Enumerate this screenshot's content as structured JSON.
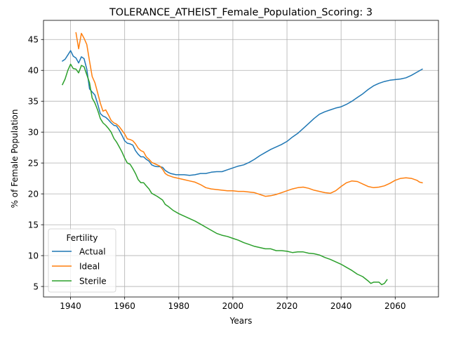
{
  "chart_data": {
    "type": "line",
    "title": "TOLERANCE_ATHEIST_Female_Population_Scoring: 3",
    "xlabel": "Years",
    "ylabel": "% of Female Population",
    "xlim": [
      1930,
      2076
    ],
    "ylim": [
      3.3,
      48.1
    ],
    "xticks": [
      1940,
      1960,
      1980,
      2000,
      2020,
      2040,
      2060
    ],
    "yticks": [
      5,
      10,
      15,
      20,
      25,
      30,
      35,
      40,
      45
    ],
    "grid": true,
    "legend": {
      "title": "Fertility",
      "placement": "lower-left"
    },
    "series": [
      {
        "name": "Actual",
        "color": "#1f77b4",
        "points": [
          [
            1937,
            41.5
          ],
          [
            1938,
            41.8
          ],
          [
            1939,
            42.5
          ],
          [
            1940,
            43.2
          ],
          [
            1941,
            42.3
          ],
          [
            1942,
            42.0
          ],
          [
            1943,
            41.2
          ],
          [
            1944,
            42.2
          ],
          [
            1945,
            41.9
          ],
          [
            1946,
            40.2
          ],
          [
            1947,
            37.0
          ],
          [
            1948,
            36.5
          ],
          [
            1949,
            36.0
          ],
          [
            1950,
            34.6
          ],
          [
            1951,
            33.0
          ],
          [
            1952,
            32.6
          ],
          [
            1953,
            32.4
          ],
          [
            1954,
            32.0
          ],
          [
            1955,
            31.5
          ],
          [
            1956,
            31.1
          ],
          [
            1957,
            31.0
          ],
          [
            1958,
            30.3
          ],
          [
            1959,
            29.5
          ],
          [
            1960,
            28.6
          ],
          [
            1961,
            28.2
          ],
          [
            1962,
            28.1
          ],
          [
            1963,
            27.9
          ],
          [
            1964,
            27.0
          ],
          [
            1965,
            26.4
          ],
          [
            1966,
            26.0
          ],
          [
            1967,
            26.0
          ],
          [
            1968,
            25.6
          ],
          [
            1969,
            25.3
          ],
          [
            1970,
            24.7
          ],
          [
            1971,
            24.5
          ],
          [
            1972,
            24.4
          ],
          [
            1973,
            24.4
          ],
          [
            1974,
            24.3
          ],
          [
            1975,
            23.8
          ],
          [
            1976,
            23.5
          ],
          [
            1977,
            23.3
          ],
          [
            1978,
            23.2
          ],
          [
            1979,
            23.1
          ],
          [
            1980,
            23.1
          ],
          [
            1982,
            23.1
          ],
          [
            1984,
            23.0
          ],
          [
            1986,
            23.1
          ],
          [
            1988,
            23.3
          ],
          [
            1990,
            23.3
          ],
          [
            1992,
            23.5
          ],
          [
            1994,
            23.6
          ],
          [
            1996,
            23.6
          ],
          [
            1998,
            23.9
          ],
          [
            2000,
            24.2
          ],
          [
            2002,
            24.5
          ],
          [
            2004,
            24.7
          ],
          [
            2006,
            25.1
          ],
          [
            2008,
            25.6
          ],
          [
            2010,
            26.2
          ],
          [
            2012,
            26.7
          ],
          [
            2014,
            27.2
          ],
          [
            2016,
            27.6
          ],
          [
            2018,
            28.0
          ],
          [
            2020,
            28.5
          ],
          [
            2022,
            29.2
          ],
          [
            2024,
            29.8
          ],
          [
            2026,
            30.6
          ],
          [
            2028,
            31.4
          ],
          [
            2030,
            32.2
          ],
          [
            2032,
            32.9
          ],
          [
            2034,
            33.3
          ],
          [
            2036,
            33.6
          ],
          [
            2038,
            33.9
          ],
          [
            2040,
            34.1
          ],
          [
            2042,
            34.5
          ],
          [
            2044,
            35.0
          ],
          [
            2046,
            35.6
          ],
          [
            2048,
            36.2
          ],
          [
            2050,
            36.9
          ],
          [
            2052,
            37.5
          ],
          [
            2054,
            37.9
          ],
          [
            2056,
            38.2
          ],
          [
            2058,
            38.4
          ],
          [
            2060,
            38.5
          ],
          [
            2062,
            38.6
          ],
          [
            2064,
            38.8
          ],
          [
            2066,
            39.2
          ],
          [
            2068,
            39.7
          ],
          [
            2070,
            40.2
          ]
        ]
      },
      {
        "name": "Ideal",
        "color": "#ff7f0e",
        "points": [
          [
            1942,
            46.1
          ],
          [
            1943,
            43.5
          ],
          [
            1944,
            46.0
          ],
          [
            1945,
            45.2
          ],
          [
            1946,
            44.2
          ],
          [
            1947,
            41.5
          ],
          [
            1948,
            39.0
          ],
          [
            1949,
            38.0
          ],
          [
            1950,
            36.4
          ],
          [
            1951,
            34.7
          ],
          [
            1952,
            33.4
          ],
          [
            1953,
            33.6
          ],
          [
            1954,
            32.8
          ],
          [
            1955,
            31.9
          ],
          [
            1956,
            31.5
          ],
          [
            1957,
            31.3
          ],
          [
            1958,
            30.9
          ],
          [
            1959,
            30.3
          ],
          [
            1960,
            29.7
          ],
          [
            1961,
            28.9
          ],
          [
            1962,
            28.8
          ],
          [
            1963,
            28.6
          ],
          [
            1964,
            28.1
          ],
          [
            1965,
            27.4
          ],
          [
            1966,
            27.0
          ],
          [
            1967,
            26.8
          ],
          [
            1968,
            26.0
          ],
          [
            1969,
            25.6
          ],
          [
            1970,
            25.1
          ],
          [
            1971,
            24.9
          ],
          [
            1972,
            24.7
          ],
          [
            1973,
            24.5
          ],
          [
            1974,
            24.0
          ],
          [
            1975,
            23.3
          ],
          [
            1976,
            23.0
          ],
          [
            1978,
            22.7
          ],
          [
            1980,
            22.5
          ],
          [
            1982,
            22.3
          ],
          [
            1984,
            22.1
          ],
          [
            1986,
            21.9
          ],
          [
            1988,
            21.5
          ],
          [
            1990,
            21.0
          ],
          [
            1992,
            20.8
          ],
          [
            1994,
            20.7
          ],
          [
            1996,
            20.6
          ],
          [
            1998,
            20.5
          ],
          [
            2000,
            20.5
          ],
          [
            2002,
            20.4
          ],
          [
            2004,
            20.4
          ],
          [
            2006,
            20.3
          ],
          [
            2008,
            20.2
          ],
          [
            2010,
            19.9
          ],
          [
            2012,
            19.6
          ],
          [
            2014,
            19.7
          ],
          [
            2016,
            19.9
          ],
          [
            2018,
            20.2
          ],
          [
            2020,
            20.5
          ],
          [
            2022,
            20.8
          ],
          [
            2024,
            21.0
          ],
          [
            2026,
            21.1
          ],
          [
            2028,
            20.9
          ],
          [
            2030,
            20.6
          ],
          [
            2032,
            20.4
          ],
          [
            2034,
            20.2
          ],
          [
            2036,
            20.1
          ],
          [
            2038,
            20.5
          ],
          [
            2040,
            21.2
          ],
          [
            2042,
            21.8
          ],
          [
            2044,
            22.1
          ],
          [
            2046,
            22.0
          ],
          [
            2048,
            21.6
          ],
          [
            2050,
            21.2
          ],
          [
            2052,
            21.0
          ],
          [
            2054,
            21.1
          ],
          [
            2056,
            21.3
          ],
          [
            2058,
            21.7
          ],
          [
            2060,
            22.2
          ],
          [
            2062,
            22.5
          ],
          [
            2064,
            22.6
          ],
          [
            2066,
            22.5
          ],
          [
            2068,
            22.2
          ],
          [
            2069,
            21.9
          ],
          [
            2070,
            21.8
          ]
        ]
      },
      {
        "name": "Sterile",
        "color": "#2ca02c",
        "points": [
          [
            1937,
            37.7
          ],
          [
            1938,
            38.6
          ],
          [
            1939,
            40.0
          ],
          [
            1940,
            41.0
          ],
          [
            1941,
            40.3
          ],
          [
            1942,
            40.2
          ],
          [
            1943,
            39.6
          ],
          [
            1944,
            40.8
          ],
          [
            1945,
            40.6
          ],
          [
            1946,
            39.3
          ],
          [
            1947,
            38.0
          ],
          [
            1948,
            35.5
          ],
          [
            1949,
            34.7
          ],
          [
            1950,
            33.6
          ],
          [
            1951,
            32.2
          ],
          [
            1952,
            31.5
          ],
          [
            1953,
            31.1
          ],
          [
            1954,
            30.6
          ],
          [
            1955,
            30.0
          ],
          [
            1956,
            29.0
          ],
          [
            1957,
            28.4
          ],
          [
            1958,
            27.6
          ],
          [
            1959,
            26.8
          ],
          [
            1960,
            25.8
          ],
          [
            1961,
            25.0
          ],
          [
            1962,
            24.8
          ],
          [
            1963,
            24.1
          ],
          [
            1964,
            23.3
          ],
          [
            1965,
            22.3
          ],
          [
            1966,
            21.8
          ],
          [
            1967,
            21.8
          ],
          [
            1968,
            21.3
          ],
          [
            1969,
            20.8
          ],
          [
            1970,
            20.1
          ],
          [
            1972,
            19.6
          ],
          [
            1974,
            19.0
          ],
          [
            1975,
            18.3
          ],
          [
            1976,
            18.0
          ],
          [
            1978,
            17.3
          ],
          [
            1980,
            16.8
          ],
          [
            1982,
            16.4
          ],
          [
            1984,
            16.0
          ],
          [
            1986,
            15.6
          ],
          [
            1988,
            15.1
          ],
          [
            1990,
            14.6
          ],
          [
            1992,
            14.1
          ],
          [
            1994,
            13.6
          ],
          [
            1996,
            13.3
          ],
          [
            1998,
            13.1
          ],
          [
            2000,
            12.8
          ],
          [
            2002,
            12.5
          ],
          [
            2004,
            12.1
          ],
          [
            2006,
            11.8
          ],
          [
            2008,
            11.5
          ],
          [
            2010,
            11.3
          ],
          [
            2012,
            11.1
          ],
          [
            2014,
            11.1
          ],
          [
            2016,
            10.8
          ],
          [
            2018,
            10.8
          ],
          [
            2020,
            10.7
          ],
          [
            2022,
            10.5
          ],
          [
            2024,
            10.6
          ],
          [
            2026,
            10.6
          ],
          [
            2028,
            10.4
          ],
          [
            2030,
            10.3
          ],
          [
            2032,
            10.1
          ],
          [
            2034,
            9.7
          ],
          [
            2036,
            9.4
          ],
          [
            2038,
            9.0
          ],
          [
            2040,
            8.6
          ],
          [
            2042,
            8.1
          ],
          [
            2044,
            7.6
          ],
          [
            2046,
            7.0
          ],
          [
            2048,
            6.6
          ],
          [
            2050,
            5.9
          ],
          [
            2051,
            5.5
          ],
          [
            2052,
            5.7
          ],
          [
            2054,
            5.7
          ],
          [
            2055,
            5.3
          ],
          [
            2056,
            5.5
          ],
          [
            2057,
            6.1
          ]
        ]
      }
    ]
  }
}
